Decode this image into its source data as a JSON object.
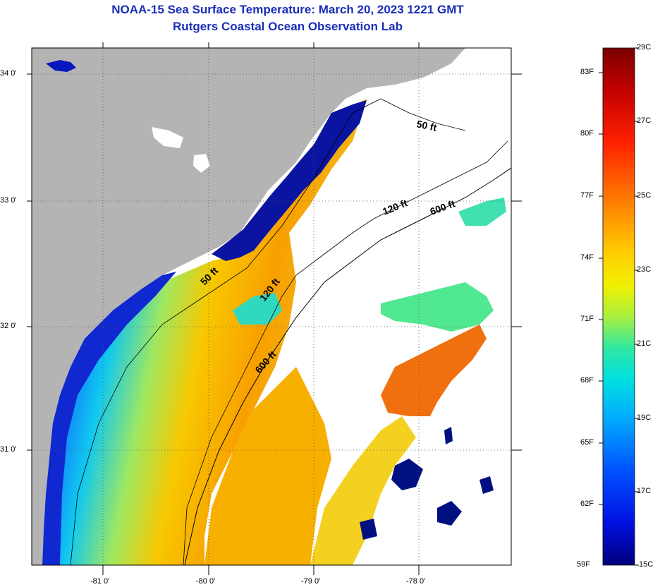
{
  "header": {
    "title": "NOAA-15 Sea Surface Temperature:  March 20, 2023 1221 GMT",
    "subtitle": "Rutgers Coastal Ocean Observation Lab"
  },
  "map": {
    "lat_labels": [
      "34 0'",
      "33 0'",
      "32 0'",
      "31 0'"
    ],
    "lon_labels": [
      "-81 0'",
      "-80 0'",
      "-79 0'",
      "-78 0'"
    ],
    "depth_contours": [
      {
        "label": "50 ft"
      },
      {
        "label": "120 ft"
      },
      {
        "label": "600 ft"
      },
      {
        "label": "50 ft"
      },
      {
        "label": "120 ft"
      },
      {
        "label": "600 ft"
      }
    ]
  },
  "colorbar": {
    "fahrenheit": [
      "83F",
      "80F",
      "77F",
      "74F",
      "71F",
      "68F",
      "65F",
      "62F",
      "59F"
    ],
    "celsius": [
      "29C",
      "27C",
      "25C",
      "23C",
      "21C",
      "19C",
      "17C",
      "15C"
    ],
    "colors": [
      "#7a0000",
      "#d50000",
      "#ff3a00",
      "#ff8a00",
      "#ffc800",
      "#f5f500",
      "#b0f040",
      "#40f0a0",
      "#00e0e0",
      "#00a0ff",
      "#0050ff",
      "#0010e0",
      "#00007a"
    ]
  }
}
